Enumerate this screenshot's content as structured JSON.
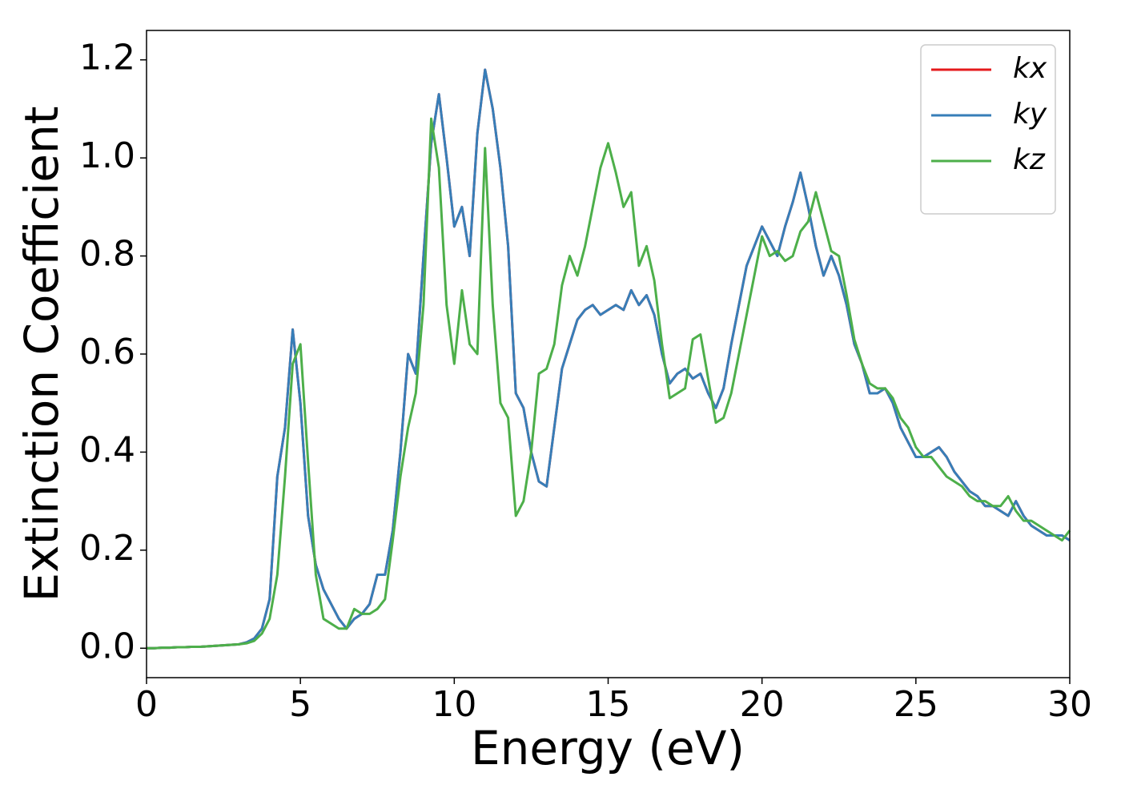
{
  "chart_data": {
    "type": "line",
    "xlabel": "Energy (eV)",
    "ylabel": "Extinction Coefficient",
    "x": [
      0,
      0.25,
      0.5,
      0.75,
      1,
      1.25,
      1.5,
      1.75,
      2,
      2.25,
      2.5,
      2.75,
      3,
      3.25,
      3.5,
      3.75,
      4,
      4.25,
      4.5,
      4.75,
      5,
      5.25,
      5.5,
      5.75,
      6,
      6.25,
      6.5,
      6.75,
      7,
      7.25,
      7.5,
      7.75,
      8,
      8.25,
      8.5,
      8.75,
      9,
      9.25,
      9.5,
      9.75,
      10,
      10.25,
      10.5,
      10.75,
      11,
      11.25,
      11.5,
      11.75,
      12,
      12.25,
      12.5,
      12.75,
      13,
      13.25,
      13.5,
      13.75,
      14,
      14.25,
      14.5,
      14.75,
      15,
      15.25,
      15.5,
      15.75,
      16,
      16.25,
      16.5,
      16.75,
      17,
      17.25,
      17.5,
      17.75,
      18,
      18.25,
      18.5,
      18.75,
      19,
      19.25,
      19.5,
      19.75,
      20,
      20.25,
      20.5,
      20.75,
      21,
      21.25,
      21.5,
      21.75,
      22,
      22.25,
      22.5,
      22.75,
      23,
      23.25,
      23.5,
      23.75,
      24,
      24.25,
      24.5,
      24.75,
      25,
      25.25,
      25.5,
      25.75,
      26,
      26.25,
      26.5,
      26.75,
      27,
      27.25,
      27.5,
      27.75,
      28,
      28.25,
      28.5,
      28.75,
      29,
      29.25,
      29.5,
      29.75,
      30
    ],
    "series": [
      {
        "name": "kx",
        "color": "#e41a1c",
        "values": [
          0,
          0,
          0.001,
          0.001,
          0.002,
          0.002,
          0.003,
          0.003,
          0.004,
          0.005,
          0.006,
          0.007,
          0.008,
          0.012,
          0.02,
          0.04,
          0.1,
          0.35,
          0.45,
          0.65,
          0.5,
          0.27,
          0.17,
          0.12,
          0.09,
          0.06,
          0.04,
          0.06,
          0.07,
          0.09,
          0.15,
          0.15,
          0.24,
          0.4,
          0.6,
          0.56,
          0.8,
          1.03,
          1.13,
          1.0,
          0.86,
          0.9,
          0.8,
          1.05,
          1.18,
          1.1,
          0.98,
          0.82,
          0.52,
          0.49,
          0.4,
          0.34,
          0.33,
          0.45,
          0.57,
          0.62,
          0.67,
          0.69,
          0.7,
          0.68,
          0.69,
          0.7,
          0.69,
          0.73,
          0.7,
          0.72,
          0.68,
          0.6,
          0.54,
          0.56,
          0.57,
          0.55,
          0.56,
          0.52,
          0.49,
          0.53,
          0.62,
          0.7,
          0.78,
          0.82,
          0.86,
          0.83,
          0.8,
          0.86,
          0.91,
          0.97,
          0.9,
          0.82,
          0.76,
          0.8,
          0.76,
          0.7,
          0.62,
          0.58,
          0.52,
          0.52,
          0.53,
          0.5,
          0.45,
          0.42,
          0.39,
          0.39,
          0.4,
          0.41,
          0.39,
          0.36,
          0.34,
          0.32,
          0.31,
          0.29,
          0.29,
          0.28,
          0.27,
          0.3,
          0.27,
          0.25,
          0.24,
          0.23,
          0.23,
          0.23,
          0.22
        ]
      },
      {
        "name": "ky",
        "color": "#377eb8",
        "values": [
          0,
          0,
          0.001,
          0.001,
          0.002,
          0.002,
          0.003,
          0.003,
          0.004,
          0.005,
          0.006,
          0.007,
          0.008,
          0.012,
          0.02,
          0.04,
          0.1,
          0.35,
          0.45,
          0.65,
          0.5,
          0.27,
          0.17,
          0.12,
          0.09,
          0.06,
          0.04,
          0.06,
          0.07,
          0.09,
          0.15,
          0.15,
          0.24,
          0.4,
          0.6,
          0.56,
          0.8,
          1.03,
          1.13,
          1.0,
          0.86,
          0.9,
          0.8,
          1.05,
          1.18,
          1.1,
          0.98,
          0.82,
          0.52,
          0.49,
          0.4,
          0.34,
          0.33,
          0.45,
          0.57,
          0.62,
          0.67,
          0.69,
          0.7,
          0.68,
          0.69,
          0.7,
          0.69,
          0.73,
          0.7,
          0.72,
          0.68,
          0.6,
          0.54,
          0.56,
          0.57,
          0.55,
          0.56,
          0.52,
          0.49,
          0.53,
          0.62,
          0.7,
          0.78,
          0.82,
          0.86,
          0.83,
          0.8,
          0.86,
          0.91,
          0.97,
          0.9,
          0.82,
          0.76,
          0.8,
          0.76,
          0.7,
          0.62,
          0.58,
          0.52,
          0.52,
          0.53,
          0.5,
          0.45,
          0.42,
          0.39,
          0.39,
          0.4,
          0.41,
          0.39,
          0.36,
          0.34,
          0.32,
          0.31,
          0.29,
          0.29,
          0.28,
          0.27,
          0.3,
          0.27,
          0.25,
          0.24,
          0.23,
          0.23,
          0.23,
          0.22
        ]
      },
      {
        "name": "kz",
        "color": "#4daf4a",
        "values": [
          0,
          0,
          0.001,
          0.001,
          0.002,
          0.002,
          0.003,
          0.003,
          0.004,
          0.005,
          0.006,
          0.007,
          0.008,
          0.01,
          0.015,
          0.03,
          0.06,
          0.15,
          0.35,
          0.58,
          0.62,
          0.38,
          0.15,
          0.06,
          0.05,
          0.04,
          0.04,
          0.08,
          0.07,
          0.07,
          0.08,
          0.1,
          0.22,
          0.35,
          0.45,
          0.52,
          0.7,
          1.08,
          0.98,
          0.7,
          0.58,
          0.73,
          0.62,
          0.6,
          1.02,
          0.7,
          0.5,
          0.47,
          0.27,
          0.3,
          0.4,
          0.56,
          0.57,
          0.62,
          0.74,
          0.8,
          0.76,
          0.82,
          0.9,
          0.98,
          1.03,
          0.97,
          0.9,
          0.93,
          0.78,
          0.82,
          0.75,
          0.62,
          0.51,
          0.52,
          0.53,
          0.63,
          0.64,
          0.55,
          0.46,
          0.47,
          0.52,
          0.6,
          0.68,
          0.76,
          0.84,
          0.8,
          0.81,
          0.79,
          0.8,
          0.85,
          0.87,
          0.93,
          0.87,
          0.81,
          0.8,
          0.72,
          0.63,
          0.58,
          0.54,
          0.53,
          0.53,
          0.51,
          0.47,
          0.45,
          0.41,
          0.39,
          0.39,
          0.37,
          0.35,
          0.34,
          0.33,
          0.31,
          0.3,
          0.3,
          0.29,
          0.29,
          0.31,
          0.28,
          0.26,
          0.26,
          0.25,
          0.24,
          0.23,
          0.22,
          0.24
        ]
      }
    ],
    "xlim": [
      0,
      30
    ],
    "xticks": [
      0,
      5,
      10,
      15,
      20,
      25,
      30
    ],
    "ylim": [
      -0.06,
      1.26
    ],
    "yticks": [
      {
        "value": 0,
        "label": "0.0"
      },
      0.2,
      0.4,
      0.6,
      0.8,
      {
        "value": 1,
        "label": "1.0"
      },
      1.2
    ],
    "grid": false,
    "legend": "upper right"
  }
}
